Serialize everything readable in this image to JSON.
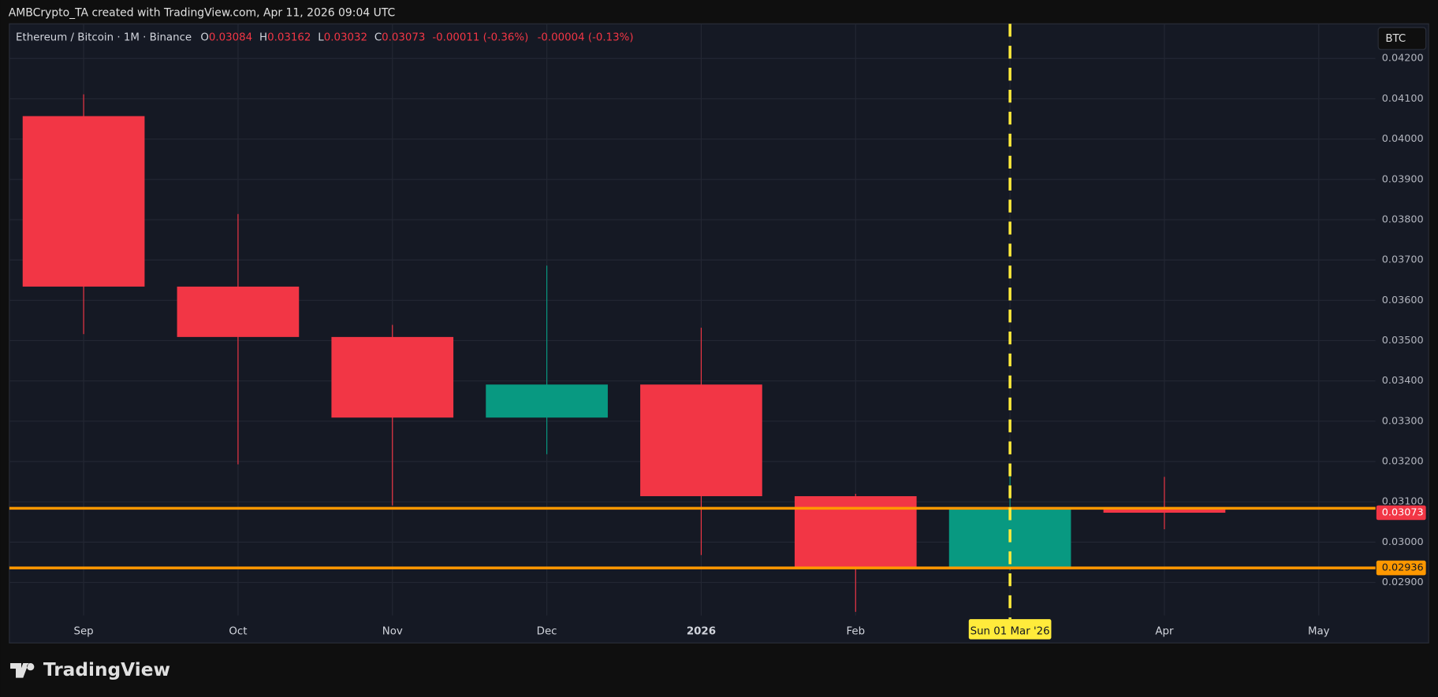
{
  "header": "AMBCrypto_TA created with TradingView.com, Apr 11, 2026 09:04 UTC",
  "brand": "TradingView",
  "chart_data": {
    "type": "candlestick",
    "title": "Ethereum / Bitcoin · 1M · Binance",
    "ohlc_labels": [
      "O",
      "H",
      "L",
      "C"
    ],
    "change": "-0.00011 (-0.36%)",
    "change2": "-0.00004 (-0.13%)",
    "currency": "BTC",
    "categories": [
      "Sep",
      "Oct",
      "Nov",
      "Dec",
      "2026",
      "Feb",
      "Sun 01 Mar '26",
      "Apr",
      "May"
    ],
    "highlight": 6,
    "open": [
      0.04057,
      0.03634,
      0.03509,
      0.03309,
      0.03391,
      0.03114,
      0.02936,
      0.03084,
      null
    ],
    "high": [
      0.04111,
      0.03814,
      0.03539,
      0.03686,
      0.03532,
      0.0312,
      0.03184,
      0.03162,
      null
    ],
    "low": [
      0.03516,
      0.03193,
      0.03091,
      0.03218,
      0.02968,
      0.02827,
      0.0293,
      0.03032,
      null
    ],
    "close": [
      0.03634,
      0.03509,
      0.03309,
      0.03391,
      0.03114,
      0.02936,
      0.03084,
      0.03073,
      null
    ],
    "up_color": "#089981",
    "down_color": "#f23645",
    "hlines": [
      {
        "value": 0.03084,
        "color": "#ff9800"
      },
      {
        "value": 0.02936,
        "color": "#ff9800"
      }
    ],
    "ylim": [
      0.02818,
      0.04286
    ],
    "yticks": [
      {
        "value": 0.029,
        "label": "0.02900"
      },
      {
        "value": 0.03,
        "label": "0.03000"
      },
      {
        "value": 0.031,
        "label": "0.03100"
      },
      {
        "value": 0.032,
        "label": "0.03200"
      },
      {
        "value": 0.033,
        "label": "0.03300"
      },
      {
        "value": 0.034,
        "label": "0.03400"
      },
      {
        "value": 0.035,
        "label": "0.03500"
      },
      {
        "value": 0.036,
        "label": "0.03600"
      },
      {
        "value": 0.037,
        "label": "0.03700"
      },
      {
        "value": 0.038,
        "label": "0.03800"
      },
      {
        "value": 0.039,
        "label": "0.03900"
      },
      {
        "value": 0.04,
        "label": "0.04000"
      },
      {
        "value": 0.041,
        "label": "0.04100"
      },
      {
        "value": 0.042,
        "label": "0.04200"
      }
    ],
    "grid": true
  }
}
